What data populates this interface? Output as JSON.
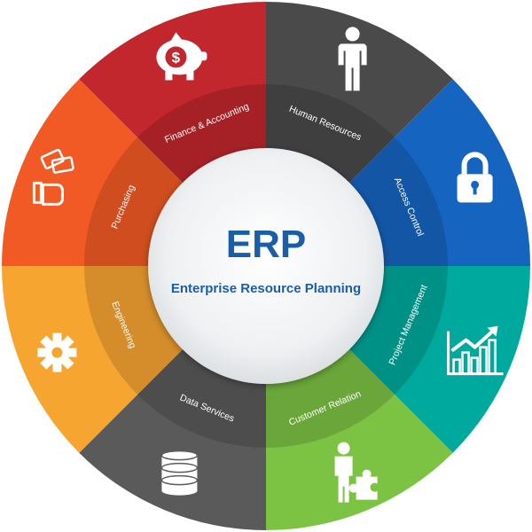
{
  "center": {
    "title": "ERP",
    "subtitle": "Enterprise Resource Planning",
    "title_color": "#1a5ea8",
    "subtitle_color": "#1a5ea8"
  },
  "segments": [
    {
      "key": "human-resources",
      "label": "Human Resources",
      "color": "#4a4a4a",
      "icon": "person-icon"
    },
    {
      "key": "access-control",
      "label": "Access Control",
      "color": "#1565c0",
      "icon": "padlock-icon"
    },
    {
      "key": "project-management",
      "label": "Project Management",
      "color": "#00a99d",
      "icon": "growth-chart-icon"
    },
    {
      "key": "customer-relation",
      "label": "Customer Relation",
      "color": "#7cc243",
      "icon": "person-puzzle-icon"
    },
    {
      "key": "data-services",
      "label": "Data Services",
      "color": "#5a5a5a",
      "icon": "database-icon"
    },
    {
      "key": "engineering",
      "label": "Engineering",
      "color": "#f7a531",
      "icon": "gear-icon"
    },
    {
      "key": "purchasing",
      "label": "Purchasing",
      "color": "#f15a24",
      "icon": "hand-money-icon"
    },
    {
      "key": "finance-accounting",
      "label": "Finance & Accounting",
      "color": "#c1272d",
      "icon": "piggy-bank-icon"
    }
  ]
}
